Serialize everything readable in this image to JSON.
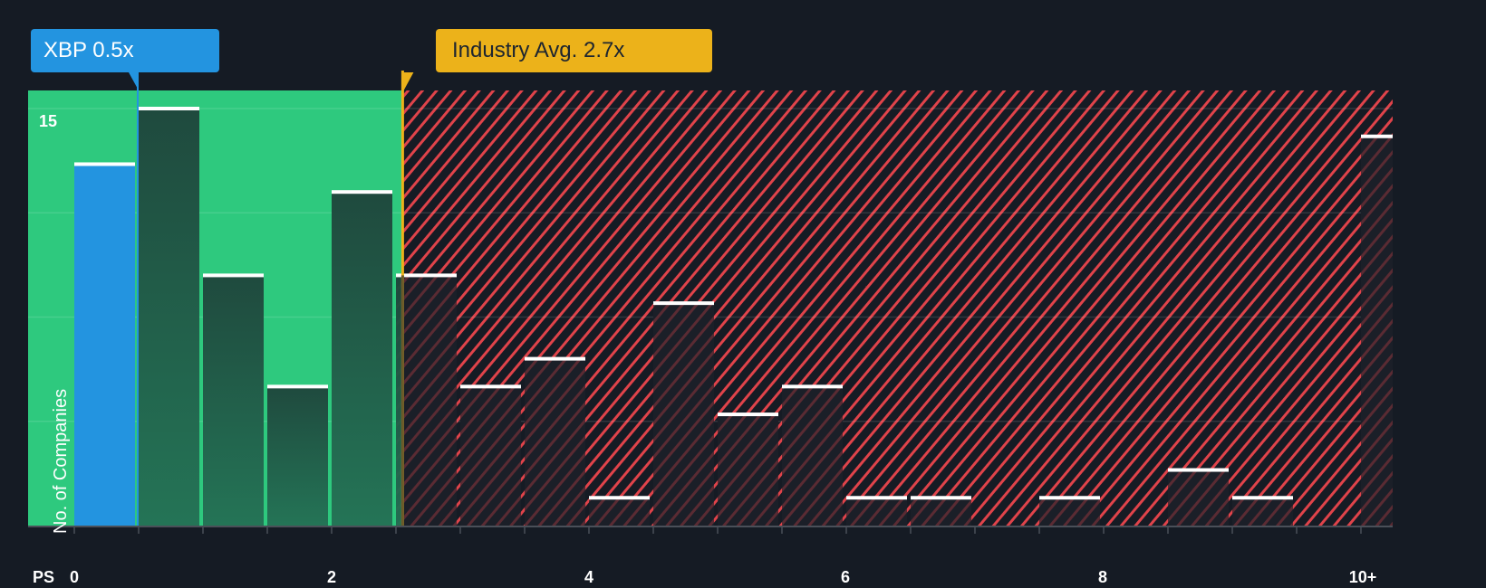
{
  "chart_data": {
    "type": "bar",
    "title": "",
    "xlabel": "PS",
    "ylabel": "No. of Companies",
    "ylim": [
      0,
      15.5
    ],
    "y_tick_labels": [
      "15"
    ],
    "x_tick_labels": [
      "0",
      "2",
      "4",
      "6",
      "8",
      "10+"
    ],
    "bins": [
      "0-0.5",
      "0.5-1",
      "1-1.5",
      "1.5-2",
      "2-2.5",
      "2.5-3",
      "3-3.5",
      "3.5-4",
      "4-4.5",
      "4.5-5",
      "5-5.5",
      "5.5-6",
      "6-6.5",
      "6.5-7",
      "7-7.5",
      "7.5-8",
      "8-8.5",
      "8.5-9",
      "9-9.5",
      "9.5-10",
      "10+"
    ],
    "values": [
      13,
      15,
      9,
      5,
      12,
      9,
      5,
      6,
      1,
      8,
      4,
      5,
      1,
      1,
      0,
      1,
      0,
      2,
      1,
      0,
      14
    ],
    "highlight_bin": "0-0.5",
    "annotations": [
      {
        "label": "XBP 0.5x",
        "x": 0.5,
        "color": "#2394e0"
      },
      {
        "label": "Industry Avg. 2.7x",
        "x": 2.7,
        "color": "#ecb21a"
      }
    ],
    "regions": [
      {
        "name": "undervalued",
        "from": 0,
        "to": 2.55,
        "color": "#2ec97e"
      },
      {
        "name": "overvalued",
        "from": 2.55,
        "to": 10.25,
        "color": "#e0434a",
        "pattern": "hatched"
      }
    ],
    "grid": true,
    "legend": "none"
  },
  "labels": {
    "company": "XBP 0.5x",
    "industry": "Industry Avg. 2.7x",
    "y_axis": "No. of Companies",
    "y_tick_15": "15",
    "x_unit": "PS",
    "x_ticks": [
      "0",
      "2",
      "4",
      "6",
      "8",
      "10+"
    ]
  },
  "colors": {
    "background": "#151b24",
    "green": "#2ec97e",
    "blue": "#2394e0",
    "gold": "#ecb21a",
    "red": "#e0434a",
    "bar_dark_green": "#1f4a3e",
    "bar_dark": "#1d222c"
  }
}
